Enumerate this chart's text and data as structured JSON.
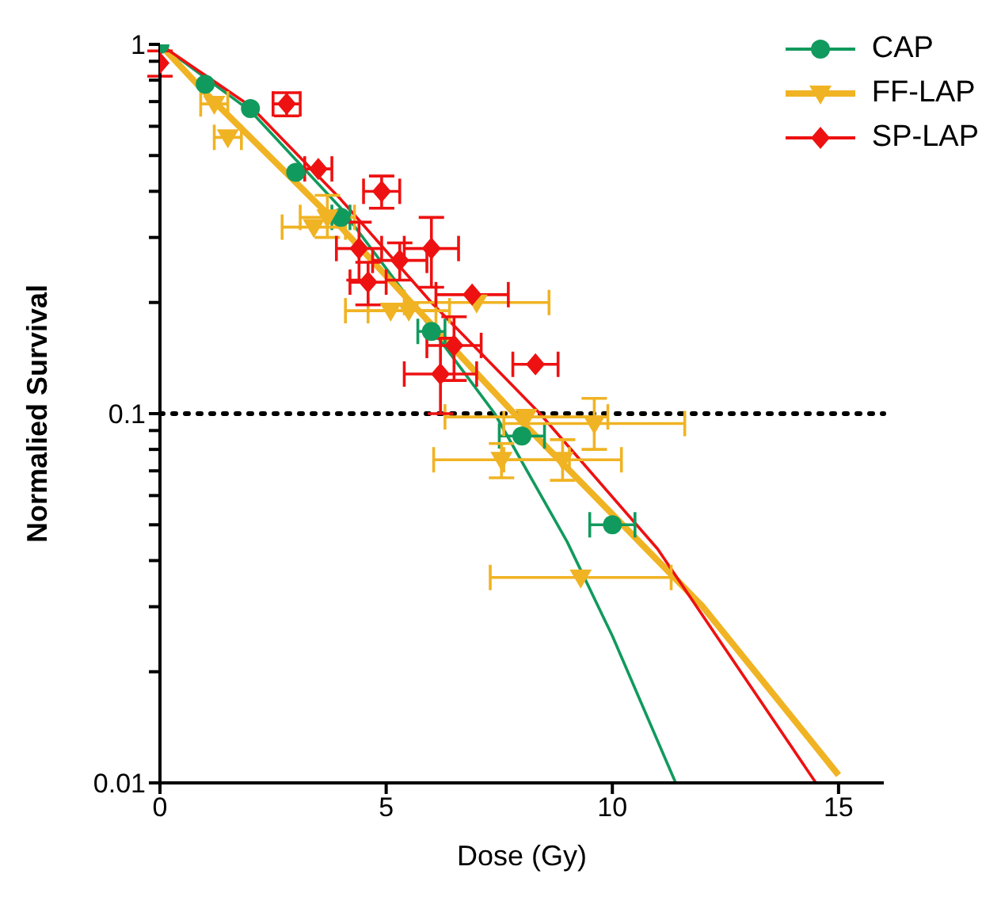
{
  "chart_data": {
    "type": "scatter",
    "xlabel": "Dose (Gy)",
    "ylabel": "Normalied Survival",
    "log": "y",
    "xlim": [
      0,
      16
    ],
    "xticks": [
      0,
      5,
      10,
      15
    ],
    "ylim": [
      0.01,
      1
    ],
    "yticks": [
      0.01,
      {
        "value": 0.02,
        "label": null
      },
      {
        "value": 0.03,
        "label": null
      },
      {
        "value": 0.04,
        "label": null
      },
      {
        "value": 0.05,
        "label": null
      },
      {
        "value": 0.06,
        "label": null
      },
      {
        "value": 0.07,
        "label": null
      },
      {
        "value": 0.08,
        "label": null
      },
      {
        "value": 0.09,
        "label": null
      },
      0.1,
      {
        "value": 0.2,
        "label": null
      },
      {
        "value": 0.3,
        "label": null
      },
      {
        "value": 0.4,
        "label": null
      },
      {
        "value": 0.5,
        "label": null
      },
      {
        "value": 0.6,
        "label": null
      },
      {
        "value": 0.7,
        "label": null
      },
      {
        "value": 0.8,
        "label": null
      },
      {
        "value": 0.9,
        "label": null
      },
      1
    ],
    "legend": "top right",
    "ref_lines": [
      {
        "axis": "y",
        "value": 0.1,
        "color": "#000000",
        "line_style": "dotted"
      }
    ],
    "series": [
      {
        "type": "line",
        "color": "#119a5d",
        "marker": "none",
        "x": [
          0,
          2,
          4,
          6,
          7.4,
          9,
          10,
          11.4
        ],
        "values": [
          1,
          0.66,
          0.36,
          0.17,
          0.1,
          0.045,
          0.025,
          0.01
        ]
      },
      {
        "type": "line",
        "color": "#f0b323",
        "marker": "none",
        "x": [
          0,
          1,
          4,
          8,
          12,
          15
        ],
        "values": [
          1,
          0.74,
          0.32,
          0.095,
          0.03,
          0.0105
        ]
      },
      {
        "type": "line",
        "color": "#ee1111",
        "marker": "none",
        "x": [
          0,
          2,
          4,
          6,
          8.4,
          11,
          14.5
        ],
        "values": [
          1,
          0.68,
          0.38,
          0.2,
          0.1,
          0.043,
          0.01
        ]
      },
      {
        "name": "CAP",
        "color": "#119a5d",
        "marker": "circle",
        "x": [
          0,
          1,
          2,
          3,
          4,
          6,
          8,
          10
        ],
        "values": [
          1,
          0.78,
          0.67,
          0.45,
          0.34,
          0.167,
          0.087,
          0.05
        ],
        "xerrors": [
          null,
          null,
          null,
          null,
          0.2,
          0.3,
          0.5,
          0.5
        ]
      },
      {
        "name": "FF-LAP",
        "color": "#f0b323",
        "marker": "triangle",
        "x": [
          1.2,
          1.5,
          3.4,
          3.7,
          5.1,
          5.5,
          7.0,
          8.1,
          9.6,
          7.55,
          8.9,
          9.3
        ],
        "values": [
          0.69,
          0.56,
          0.32,
          0.34,
          0.19,
          0.19,
          0.2,
          0.098,
          0.094,
          0.075,
          0.075,
          0.036
        ],
        "xerrors": [
          0.3,
          0.3,
          0.7,
          0.6,
          1.0,
          0.9,
          1.6,
          1.8,
          2.0,
          1.5,
          1.3,
          2.0
        ],
        "errors": [
          null,
          null,
          null,
          [
            0.3,
            0.39
          ],
          null,
          null,
          null,
          null,
          [
            0.08,
            0.11
          ],
          [
            0.067,
            0.083
          ],
          [
            0.066,
            0.085
          ],
          null
        ]
      },
      {
        "name": "SP-LAP",
        "color": "#ee1111",
        "marker": "diamond",
        "x": [
          0,
          2.8,
          3.5,
          4.4,
          4.6,
          4.9,
          5.3,
          6.0,
          6.2,
          6.5,
          6.9,
          8.3
        ],
        "values": [
          0.89,
          0.69,
          0.46,
          0.28,
          0.227,
          0.4,
          0.26,
          0.28,
          0.128,
          0.153,
          0.21,
          0.136
        ],
        "xerrors": [
          null,
          0.3,
          0.3,
          0.5,
          0.4,
          0.4,
          0.6,
          0.6,
          0.8,
          0.6,
          0.8,
          0.5
        ],
        "errors": [
          [
            0.82,
            0.96
          ],
          0.05,
          null,
          0.05,
          0.03,
          0.04,
          0.03,
          [
            0.22,
            0.34
          ],
          [
            0.1,
            0.16
          ],
          0.03,
          null,
          null
        ]
      }
    ]
  }
}
